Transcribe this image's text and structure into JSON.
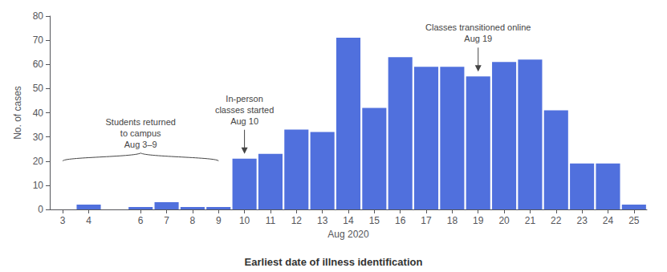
{
  "chart_data": {
    "type": "bar",
    "x": [
      3,
      4,
      5,
      6,
      7,
      8,
      9,
      10,
      11,
      12,
      13,
      14,
      15,
      16,
      17,
      18,
      19,
      20,
      21,
      22,
      23,
      24,
      25
    ],
    "values": [
      0,
      2,
      0,
      1,
      3,
      1,
      1,
      21,
      23,
      33,
      32,
      71,
      42,
      63,
      59,
      59,
      55,
      61,
      62,
      41,
      19,
      19,
      2
    ],
    "xlim": [
      2.5,
      25.5
    ],
    "xticks": [
      3,
      4,
      6,
      7,
      8,
      9,
      10,
      11,
      12,
      13,
      14,
      15,
      16,
      17,
      18,
      19,
      20,
      21,
      22,
      23,
      24,
      25
    ],
    "ylim": [
      0,
      80
    ],
    "yticks": [
      0,
      10,
      20,
      30,
      40,
      50,
      60,
      70,
      80
    ],
    "ylabel": "No. of cases",
    "xlabel": [
      "Aug 2020",
      "Earliest date of illness identification"
    ],
    "grid": false,
    "annotations": [
      {
        "text": "Students returned\nto campus\nAug 3–9",
        "x": [
          3,
          9
        ],
        "y": 20
      },
      {
        "text": "In-person\nclasses started\nAug 10",
        "x": 10,
        "y": 22
      },
      {
        "text": "Classes transitioned online\nAug 19",
        "x": 19,
        "y": 56
      }
    ]
  }
}
